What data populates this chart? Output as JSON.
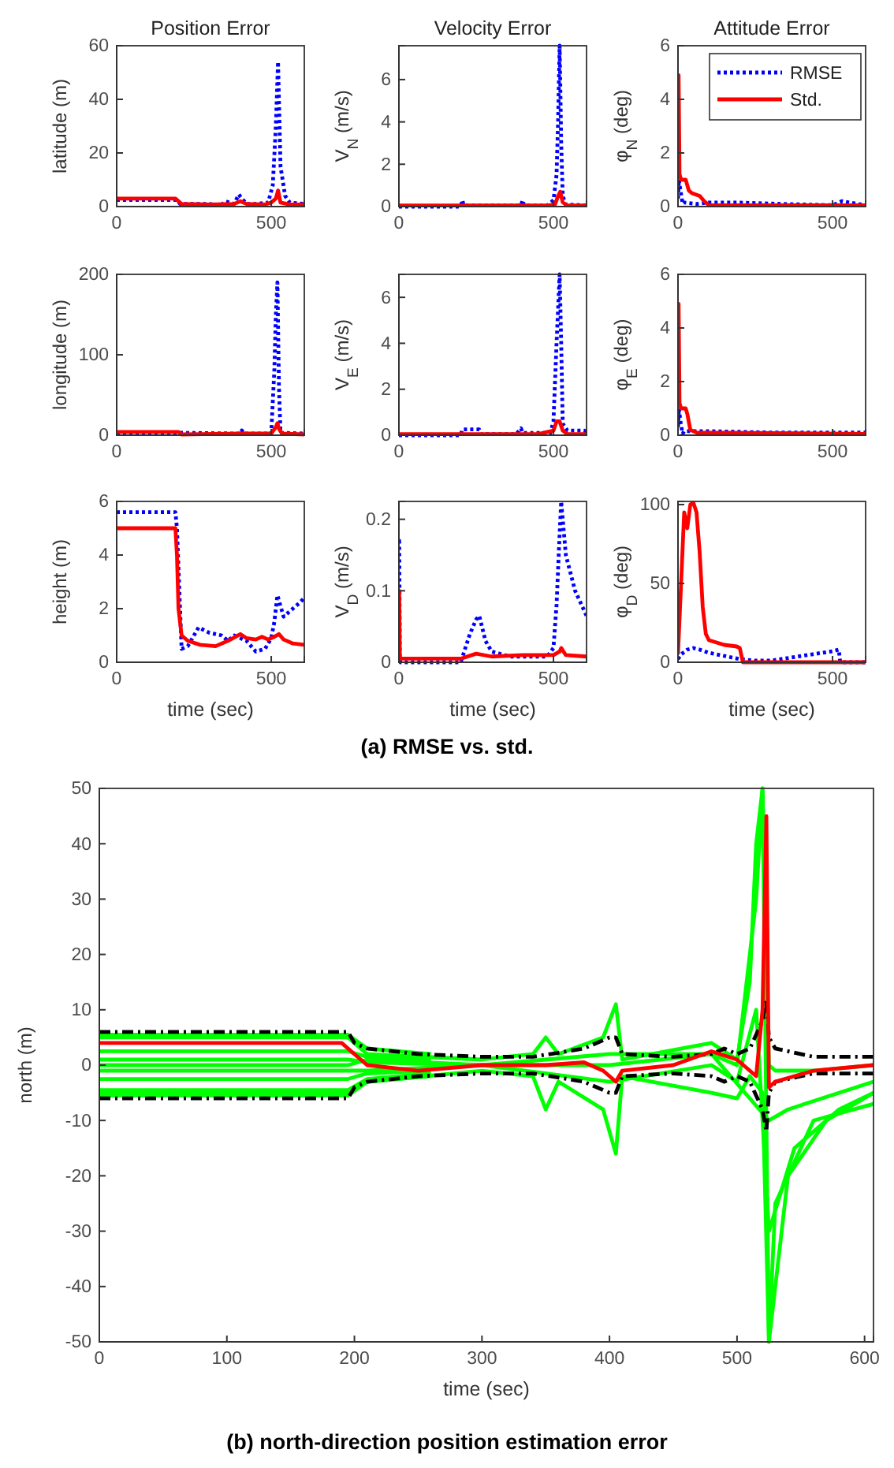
{
  "chart_data": [
    {
      "type": "line",
      "title": "Position Error",
      "ylabel": "latitude (m)",
      "xlim": [
        0,
        607
      ],
      "xticks": [
        0,
        500
      ],
      "ylim": [
        0,
        60
      ],
      "yticks": [
        0,
        20,
        40,
        60
      ],
      "series": [
        {
          "color": "#0000ff",
          "line_style": "dotted",
          "x": [
            0,
            195,
            205,
            300,
            340,
            350,
            380,
            395,
            405,
            420,
            450,
            490,
            505,
            515,
            522,
            530,
            545,
            560,
            607
          ],
          "values": [
            2.5,
            2.5,
            1,
            1,
            0.5,
            2,
            1,
            4.5,
            3,
            1,
            1,
            1.5,
            8,
            30,
            54,
            15,
            4,
            1.5,
            1
          ]
        },
        {
          "color": "#ff0000",
          "line_style": "solid",
          "x": [
            0,
            190,
            210,
            300,
            380,
            400,
            420,
            480,
            500,
            515,
            522,
            530,
            560,
            607
          ],
          "values": [
            3,
            3,
            1,
            0.8,
            1,
            2,
            1,
            0.8,
            1.5,
            3,
            6,
            1.5,
            0.8,
            0.8
          ]
        }
      ]
    },
    {
      "type": "line",
      "title": "Velocity Error",
      "ylabel": "V$_{N}$ (m/s)",
      "xlim": [
        0,
        607
      ],
      "xticks": [
        0,
        500
      ],
      "ylim": [
        0,
        7.6
      ],
      "yticks": [
        0,
        2,
        4,
        6
      ],
      "series": [
        {
          "color": "#0000ff",
          "line_style": "dotted",
          "x": [
            0,
            200,
            205,
            210,
            300,
            395,
            400,
            405,
            480,
            500,
            510,
            515,
            520,
            525,
            530,
            540,
            607
          ],
          "values": [
            0,
            0,
            0.3,
            0.05,
            0.05,
            0.05,
            0.3,
            0.05,
            0.05,
            0.3,
            1.5,
            4,
            7.6,
            3,
            0.5,
            0.1,
            0.05
          ]
        },
        {
          "color": "#ff0000",
          "line_style": "solid",
          "x": [
            0,
            480,
            505,
            515,
            522,
            530,
            545,
            607
          ],
          "values": [
            0.05,
            0.05,
            0.1,
            0.5,
            0.7,
            0.2,
            0.05,
            0.05
          ]
        }
      ]
    },
    {
      "type": "line",
      "title": "Attitude Error",
      "ylabel": "φ$_{N}$ (deg)",
      "xlim": [
        0,
        607
      ],
      "xticks": [
        0,
        500
      ],
      "ylim": [
        0,
        6
      ],
      "yticks": [
        0,
        2,
        4,
        6
      ],
      "legend": "top right",
      "series": [
        {
          "name": "RMSE",
          "color": "#0000ff",
          "line_style": "dotted",
          "x": [
            0,
            3,
            8,
            15,
            20,
            60,
            100,
            200,
            330,
            500,
            530,
            607
          ],
          "values": [
            0.3,
            1,
            0.6,
            0.1,
            0.15,
            0.1,
            0.15,
            0.15,
            0.1,
            0.05,
            0.2,
            0.05
          ]
        },
        {
          "name": "Std.",
          "color": "#ff0000",
          "line_style": "solid",
          "x": [
            0,
            2,
            5,
            10,
            25,
            35,
            45,
            70,
            85,
            100,
            200,
            607
          ],
          "values": [
            4.9,
            4.9,
            1.2,
            1,
            1,
            0.6,
            0.5,
            0.4,
            0.2,
            0.05,
            0.05,
            0.05
          ]
        }
      ]
    },
    {
      "type": "line",
      "ylabel": "longitude (m)",
      "xlim": [
        0,
        607
      ],
      "xticks": [
        0,
        500
      ],
      "ylim": [
        0,
        200
      ],
      "yticks": [
        0,
        100,
        200
      ],
      "series": [
        {
          "color": "#0000ff",
          "line_style": "dotted",
          "x": [
            0,
            200,
            400,
            405,
            410,
            500,
            510,
            515,
            520,
            525,
            530,
            607
          ],
          "values": [
            3,
            3,
            2,
            6,
            2,
            2,
            80,
            150,
            190,
            60,
            3,
            2
          ]
        },
        {
          "color": "#ff0000",
          "line_style": "solid",
          "x": [
            0,
            200,
            210,
            400,
            500,
            515,
            520,
            525,
            535,
            607
          ],
          "values": [
            4,
            4,
            1,
            2,
            2,
            10,
            15,
            8,
            2,
            1
          ]
        }
      ]
    },
    {
      "type": "line",
      "ylabel": "V$_{E}$ (m/s)",
      "xlim": [
        0,
        607
      ],
      "xticks": [
        0,
        500
      ],
      "ylim": [
        0,
        7
      ],
      "yticks": [
        0,
        2,
        4,
        6
      ],
      "series": [
        {
          "color": "#0000ff",
          "line_style": "dotted",
          "x": [
            0,
            200,
            205,
            260,
            265,
            380,
            395,
            400,
            490,
            500,
            510,
            520,
            525,
            530,
            545,
            600,
            607
          ],
          "values": [
            0,
            0,
            0.25,
            0.25,
            0.05,
            0.05,
            0.3,
            0.1,
            0.1,
            0.6,
            4,
            7,
            4,
            0.5,
            0.2,
            0.2,
            0.1
          ]
        },
        {
          "color": "#ff0000",
          "line_style": "solid",
          "x": [
            0,
            450,
            500,
            510,
            520,
            530,
            545,
            607
          ],
          "values": [
            0.05,
            0.05,
            0.2,
            0.6,
            0.6,
            0.2,
            0.05,
            0.05
          ]
        }
      ]
    },
    {
      "type": "line",
      "ylabel": "φ$_{E}$ (deg)",
      "xlim": [
        0,
        607
      ],
      "xticks": [
        0,
        500
      ],
      "ylim": [
        0,
        6
      ],
      "yticks": [
        0,
        2,
        4,
        6
      ],
      "series": [
        {
          "color": "#0000ff",
          "line_style": "dotted",
          "x": [
            0,
            3,
            8,
            15,
            20,
            100,
            300,
            607
          ],
          "values": [
            0.3,
            1,
            0.5,
            0.05,
            0.15,
            0.15,
            0.1,
            0.1
          ]
        },
        {
          "color": "#ff0000",
          "line_style": "solid",
          "x": [
            0,
            2,
            5,
            10,
            25,
            30,
            40,
            60,
            607
          ],
          "values": [
            4.9,
            4.9,
            1.2,
            1,
            1,
            0.8,
            0.2,
            0.1,
            0.05
          ]
        }
      ]
    },
    {
      "type": "line",
      "ylabel": "height (m)",
      "xlabel": "time (sec)",
      "xlim": [
        0,
        607
      ],
      "xticks": [
        0,
        500
      ],
      "ylim": [
        0,
        6
      ],
      "yticks": [
        0,
        2,
        4,
        6
      ],
      "series": [
        {
          "color": "#0000ff",
          "line_style": "dotted",
          "x": [
            0,
            190,
            195,
            210,
            230,
            265,
            300,
            340,
            360,
            380,
            400,
            420,
            450,
            480,
            500,
            510,
            520,
            540,
            560,
            590,
            607
          ],
          "values": [
            5.6,
            5.6,
            5,
            0.5,
            0.6,
            1.3,
            1.1,
            1,
            0.8,
            1,
            0.9,
            0.8,
            0.4,
            0.5,
            0.9,
            1.5,
            2.5,
            1.7,
            1.9,
            2.2,
            2.4
          ]
        },
        {
          "color": "#ff0000",
          "line_style": "solid",
          "x": [
            0,
            190,
            195,
            200,
            210,
            230,
            270,
            320,
            360,
            400,
            420,
            450,
            470,
            490,
            510,
            525,
            540,
            570,
            607
          ],
          "values": [
            5,
            5,
            4,
            2,
            1,
            0.8,
            0.65,
            0.6,
            0.8,
            1.05,
            0.9,
            0.85,
            0.95,
            0.85,
            0.95,
            1.05,
            0.85,
            0.7,
            0.65
          ]
        }
      ]
    },
    {
      "type": "line",
      "ylabel": "V$_{D}$ (m/s)",
      "xlabel": "time (sec)",
      "xlim": [
        0,
        607
      ],
      "xticks": [
        0,
        500
      ],
      "ylim": [
        0,
        0.225
      ],
      "yticks": [
        0,
        0.1,
        0.2
      ],
      "annotations": [
        "(a) RMSE vs. std."
      ],
      "series": [
        {
          "color": "#0000ff",
          "line_style": "dotted",
          "x": [
            0,
            1,
            3,
            5,
            200,
            230,
            250,
            260,
            280,
            300,
            360,
            400,
            480,
            500,
            510,
            520,
            525,
            540,
            570,
            607
          ],
          "values": [
            0.17,
            0.17,
            0.005,
            0,
            0,
            0.04,
            0.06,
            0.065,
            0.03,
            0.015,
            0.008,
            0.008,
            0.008,
            0.02,
            0.08,
            0.18,
            0.225,
            0.15,
            0.1,
            0.065
          ]
        },
        {
          "color": "#ff0000",
          "line_style": "solid",
          "x": [
            0,
            1,
            3,
            200,
            250,
            300,
            400,
            500,
            520,
            525,
            540,
            607
          ],
          "values": [
            0.1,
            0.1,
            0.005,
            0.005,
            0.012,
            0.008,
            0.01,
            0.01,
            0.015,
            0.02,
            0.01,
            0.008
          ]
        }
      ]
    },
    {
      "type": "line",
      "ylabel": "φ$_{D}$ (deg)",
      "xlabel": "time (sec)",
      "xlim": [
        0,
        607
      ],
      "xticks": [
        0,
        500
      ],
      "ylim": [
        0,
        102
      ],
      "yticks": [
        0,
        50,
        100
      ],
      "series": [
        {
          "color": "#0000ff",
          "line_style": "dotted",
          "x": [
            0,
            10,
            30,
            50,
            70,
            100,
            150,
            200,
            250,
            300,
            400,
            500,
            520,
            525,
            607
          ],
          "values": [
            2,
            5,
            8,
            9,
            8,
            6,
            4,
            2,
            1,
            1,
            4,
            7,
            8,
            0,
            0
          ]
        },
        {
          "color": "#ff0000",
          "line_style": "solid",
          "x": [
            0,
            10,
            20,
            30,
            40,
            50,
            60,
            70,
            80,
            90,
            100,
            150,
            190,
            200,
            210,
            607
          ],
          "values": [
            5,
            50,
            95,
            85,
            100,
            101,
            95,
            70,
            35,
            18,
            14,
            11,
            10,
            9,
            0,
            0
          ]
        }
      ]
    },
    {
      "type": "line",
      "ylabel": "north (m)",
      "xlabel": "time (sec)",
      "xlim": [
        0,
        607
      ],
      "xticks": [
        0,
        100,
        200,
        300,
        400,
        500,
        600
      ],
      "ylim": [
        -50,
        50
      ],
      "yticks": [
        -50,
        -40,
        -30,
        -20,
        -10,
        0,
        10,
        20,
        30,
        40,
        50
      ],
      "annotations": [
        "(b) north-direction position estimation error"
      ],
      "series": [
        {
          "color": "#00ff00",
          "line_style": "solid",
          "x": [
            0,
            195,
            210,
            260
          ],
          "values": [
            5.5,
            5.5,
            3,
            2
          ]
        },
        {
          "color": "#00ff00",
          "line_style": "solid",
          "x": [
            0,
            195,
            210,
            260
          ],
          "values": [
            -5.5,
            -5.5,
            -3,
            -2
          ]
        },
        {
          "color": "#00ff00",
          "line_style": "solid",
          "x": [
            0,
            195,
            210,
            260
          ],
          "values": [
            2.5,
            2.5,
            1.5,
            1
          ]
        },
        {
          "color": "#00ff00",
          "line_style": "solid",
          "x": [
            0,
            195,
            210,
            260
          ],
          "values": [
            -2.5,
            -2.5,
            -1.5,
            -1
          ]
        },
        {
          "color": "#00ff00",
          "line_style": "solid",
          "x": [
            0,
            195,
            210,
            260
          ],
          "values": [
            -4.5,
            -4.5,
            -2.5,
            -1.5
          ]
        },
        {
          "color": "#00ff00",
          "line_style": "solid",
          "x": [
            0,
            195,
            210,
            300,
            340,
            350,
            360,
            395,
            405,
            410,
            480,
            500,
            510,
            515,
            520,
            525,
            530,
            560,
            607
          ],
          "values": [
            5,
            5,
            2,
            1,
            2,
            5,
            2,
            5,
            11,
            1,
            4,
            1,
            15,
            40,
            50,
            0,
            -1,
            -1,
            0
          ]
        },
        {
          "color": "#00ff00",
          "line_style": "solid",
          "x": [
            0,
            195,
            210,
            300,
            340,
            350,
            360,
            395,
            405,
            410,
            480,
            500,
            510,
            520,
            525,
            530,
            560,
            607
          ],
          "values": [
            -5,
            -5,
            -3,
            -1,
            -2,
            -8,
            -3,
            -8,
            -16,
            -2,
            -5,
            -6,
            -2,
            -5,
            -50,
            -25,
            -10,
            -7
          ]
        },
        {
          "color": "#00ff00",
          "line_style": "solid",
          "x": [
            0,
            195,
            210,
            300,
            400,
            480,
            500,
            515,
            520,
            525,
            540,
            570,
            607
          ],
          "values": [
            1,
            1,
            0.5,
            0,
            2,
            2,
            0,
            30,
            50,
            -50,
            -20,
            -10,
            -5
          ]
        },
        {
          "color": "#00ff00",
          "line_style": "solid",
          "x": [
            0,
            195,
            210,
            300,
            400,
            480,
            500,
            515,
            525,
            545,
            580,
            607
          ],
          "values": [
            -1,
            -1,
            -1,
            0,
            -3,
            0,
            -3,
            10,
            -30,
            -15,
            -8,
            -5
          ]
        },
        {
          "color": "#00ff00",
          "line_style": "solid",
          "x": [
            0,
            195,
            210,
            300,
            400,
            480,
            525,
            540,
            607
          ],
          "values": [
            0,
            0,
            1,
            0,
            0,
            2,
            -10,
            -8,
            -3
          ]
        },
        {
          "color": "#000000",
          "line_style": "dashed",
          "x": [
            0,
            195,
            200,
            210,
            250,
            300,
            340,
            380,
            400,
            405,
            410,
            450,
            480,
            490,
            500,
            510,
            520,
            523,
            525,
            530,
            560,
            607
          ],
          "values": [
            6,
            6,
            4,
            3,
            2,
            1.5,
            1.5,
            3,
            5,
            5,
            2,
            1.5,
            2,
            3,
            2,
            3,
            8,
            12,
            5,
            3,
            1.5,
            1.5
          ]
        },
        {
          "color": "#000000",
          "line_style": "dashed",
          "x": [
            0,
            195,
            200,
            210,
            250,
            300,
            340,
            380,
            400,
            405,
            410,
            450,
            480,
            490,
            500,
            510,
            520,
            523,
            525,
            530,
            560,
            607
          ],
          "values": [
            -6,
            -6,
            -4,
            -3,
            -2,
            -1.5,
            -1.5,
            -3,
            -5,
            -5,
            -2,
            -1.5,
            -2,
            -3,
            -2,
            -3,
            -8,
            -12,
            -5,
            -3,
            -1.5,
            -1.5
          ]
        },
        {
          "color": "#ff0000",
          "line_style": "solid",
          "x": [
            0,
            190,
            200,
            210,
            250,
            300,
            350,
            380,
            395,
            405,
            410,
            450,
            480,
            500,
            510,
            515,
            520,
            523,
            525,
            530,
            560,
            607
          ],
          "values": [
            4,
            4,
            2,
            0,
            -1,
            0,
            0,
            0.5,
            -1,
            -3,
            -1,
            0,
            2.5,
            1,
            -1,
            -2,
            10,
            45,
            -4,
            -3,
            -1,
            0
          ]
        }
      ]
    }
  ]
}
